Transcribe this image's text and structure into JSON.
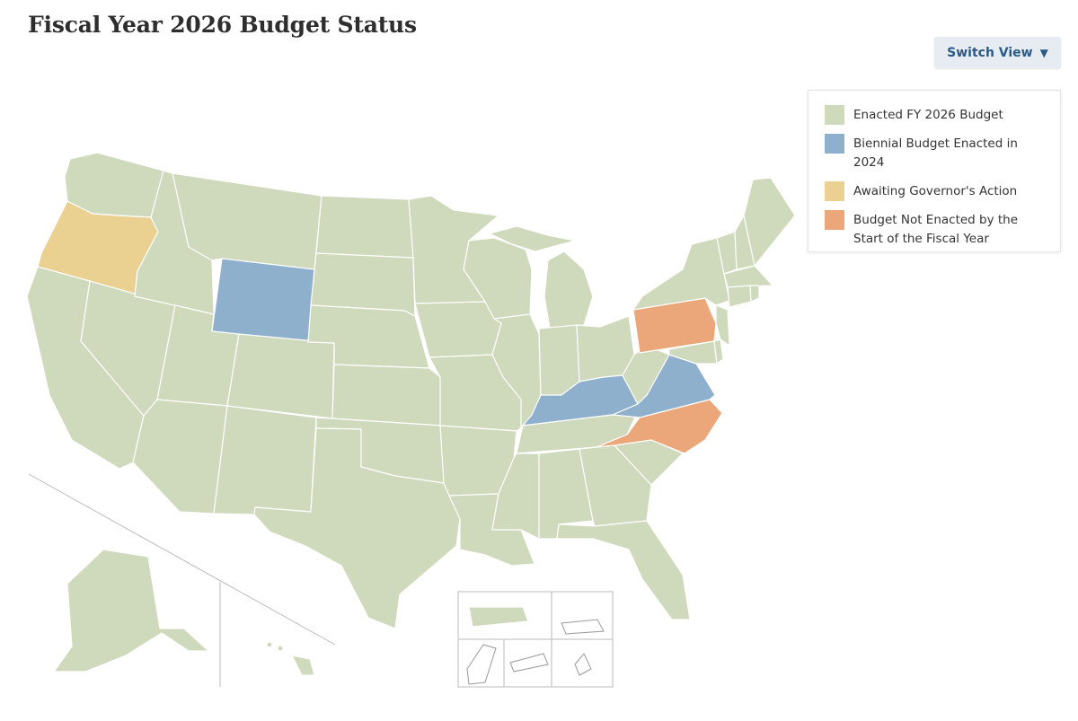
{
  "title": "Fiscal Year 2026 Budget Status",
  "switch_view": {
    "label": "Switch View",
    "icon": "caret-down-icon"
  },
  "colors": {
    "enacted": "#cfd9bb",
    "biennial": "#8fb0cc",
    "awaiting": "#ead191",
    "not_enacted": "#eba77a",
    "border": "#ffffff",
    "inset_line": "#bbbbbb"
  },
  "legend": {
    "items": [
      {
        "key": "enacted",
        "label": "Enacted FY 2026 Budget",
        "color": "#cfd9bb"
      },
      {
        "key": "biennial",
        "label": "Biennial Budget Enacted in 2024",
        "color": "#8fb0cc"
      },
      {
        "key": "awaiting",
        "label": "Awaiting Governor's Action",
        "color": "#ead191"
      },
      {
        "key": "not_enacted",
        "label": "Budget Not Enacted by the Start of the Fiscal Year",
        "color": "#eba77a"
      }
    ]
  },
  "map": {
    "state_status": {
      "Oregon": "awaiting",
      "Wyoming": "biennial",
      "Kentucky": "biennial",
      "Virginia": "biennial",
      "Pennsylvania": "not_enacted",
      "North Carolina": "not_enacted",
      "Washington": "enacted",
      "California": "enacted",
      "Nevada": "enacted",
      "Idaho": "enacted",
      "Montana": "enacted",
      "Utah": "enacted",
      "Arizona": "enacted",
      "Colorado": "enacted",
      "New Mexico": "enacted",
      "North Dakota": "enacted",
      "South Dakota": "enacted",
      "Nebraska": "enacted",
      "Kansas": "enacted",
      "Oklahoma": "enacted",
      "Texas": "enacted",
      "Minnesota": "enacted",
      "Iowa": "enacted",
      "Missouri": "enacted",
      "Arkansas": "enacted",
      "Louisiana": "enacted",
      "Wisconsin": "enacted",
      "Illinois": "enacted",
      "Michigan": "enacted",
      "Indiana": "enacted",
      "Ohio": "enacted",
      "Tennessee": "enacted",
      "Mississippi": "enacted",
      "Alabama": "enacted",
      "Georgia": "enacted",
      "Florida": "enacted",
      "South Carolina": "enacted",
      "West Virginia": "enacted",
      "Maryland": "enacted",
      "Delaware": "enacted",
      "New Jersey": "enacted",
      "New York": "enacted",
      "Connecticut": "enacted",
      "Rhode Island": "enacted",
      "Massachusetts": "enacted",
      "Vermont": "enacted",
      "New Hampshire": "enacted",
      "Maine": "enacted",
      "Alaska": "enacted",
      "Hawaii": "enacted",
      "Puerto Rico": "enacted"
    }
  }
}
